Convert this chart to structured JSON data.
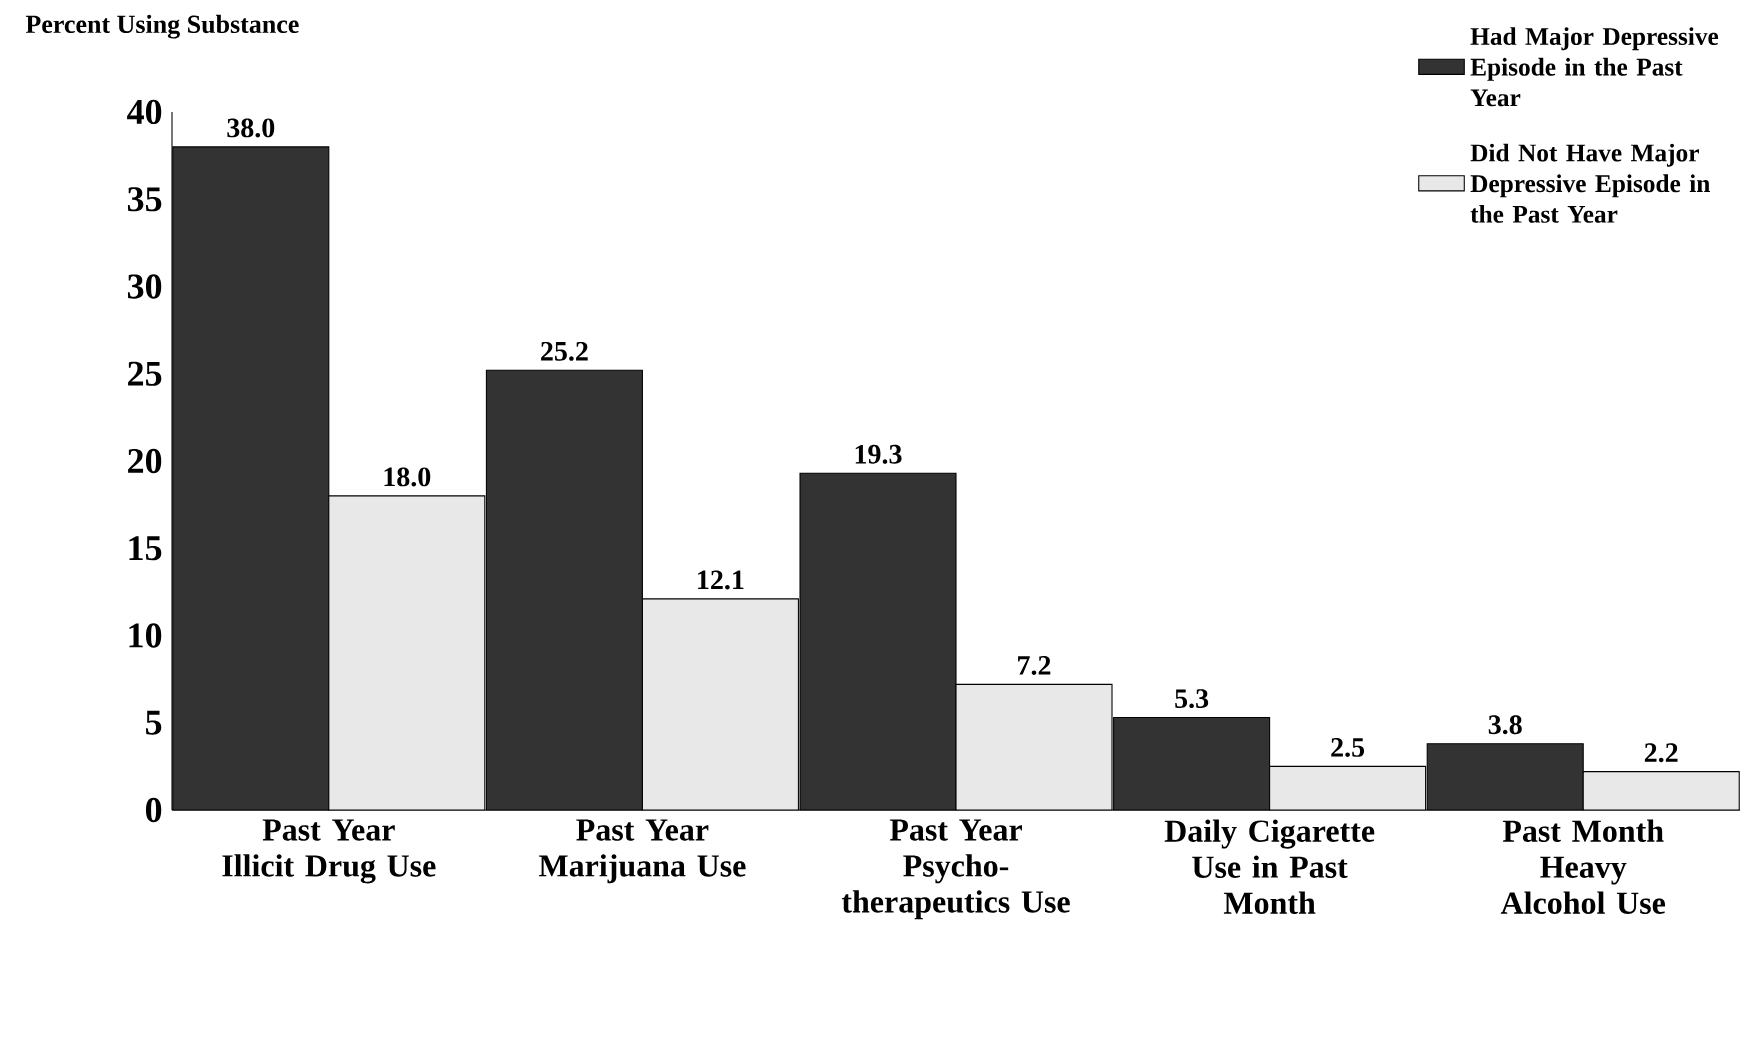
{
  "chart_data": {
    "type": "bar",
    "ylabel": "Percent Using Substance",
    "categories": [
      "Past Year Illicit Drug Use",
      "Past Year Marijuana Use",
      "Past Year Psycho-therapeutics Use",
      "Daily Cigarette Use in Past Month",
      "Past Month Heavy Alcohol Use"
    ],
    "series": [
      {
        "name": "Had Major Depressive Episode in the Past Year",
        "color": "#333333",
        "values": [
          38.0,
          25.2,
          19.3,
          5.3,
          3.8
        ],
        "value_labels": [
          "38.0",
          "25.2",
          "19.3",
          "5.3",
          "3.8"
        ]
      },
      {
        "name": "Did Not Have Major Depressive Episode in the Past Year",
        "color": "#e8e8e8",
        "values": [
          18.0,
          12.1,
          7.2,
          2.5,
          2.2
        ],
        "value_labels": [
          "18.0",
          "12.1",
          "7.2",
          "2.5",
          "2.2"
        ]
      }
    ],
    "ylim": [
      0,
      40
    ],
    "yticks": [
      0,
      5,
      10,
      15,
      20,
      25,
      30,
      35,
      40
    ],
    "grid": false,
    "legend": "top right"
  }
}
